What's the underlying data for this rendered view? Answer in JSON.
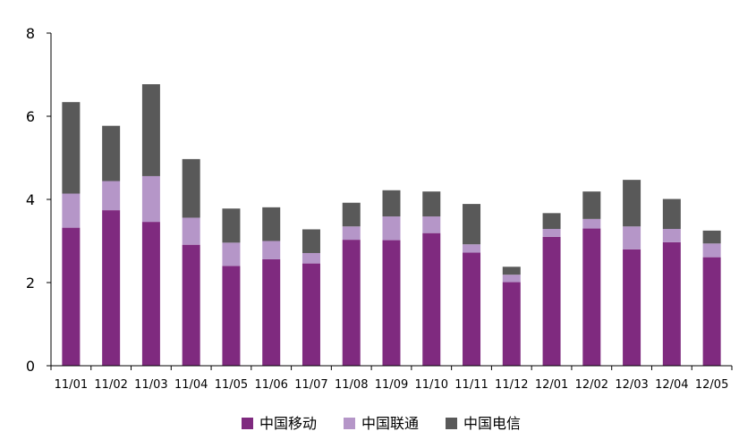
{
  "chart_data": {
    "type": "bar",
    "stacked": true,
    "categories": [
      "11/01",
      "11/02",
      "11/03",
      "11/04",
      "11/05",
      "11/06",
      "11/07",
      "11/08",
      "11/09",
      "11/10",
      "11/11",
      "11/12",
      "12/01",
      "12/02",
      "12/03",
      "12/04",
      "12/05"
    ],
    "series": [
      {
        "name": "中国移动",
        "color": "#7f2a7f",
        "values": [
          3.32,
          3.74,
          3.46,
          2.91,
          2.4,
          2.56,
          2.46,
          3.03,
          3.02,
          3.19,
          2.72,
          2.01,
          3.1,
          3.3,
          2.8,
          2.97,
          2.61
        ]
      },
      {
        "name": "中国联通",
        "color": "#b596c8",
        "values": [
          0.82,
          0.7,
          1.1,
          0.65,
          0.56,
          0.44,
          0.25,
          0.32,
          0.57,
          0.4,
          0.2,
          0.18,
          0.19,
          0.23,
          0.55,
          0.32,
          0.33
        ]
      },
      {
        "name": "中国电信",
        "color": "#595959",
        "values": [
          2.2,
          1.33,
          2.21,
          1.41,
          0.82,
          0.81,
          0.57,
          0.57,
          0.63,
          0.6,
          0.97,
          0.19,
          0.38,
          0.66,
          1.12,
          0.72,
          0.31
        ]
      }
    ],
    "yaxis": {
      "ticks": [
        "0",
        "2",
        "4",
        "6",
        "8"
      ],
      "min": 0,
      "max": 8
    },
    "grid": false,
    "legend_position": "bottom"
  }
}
